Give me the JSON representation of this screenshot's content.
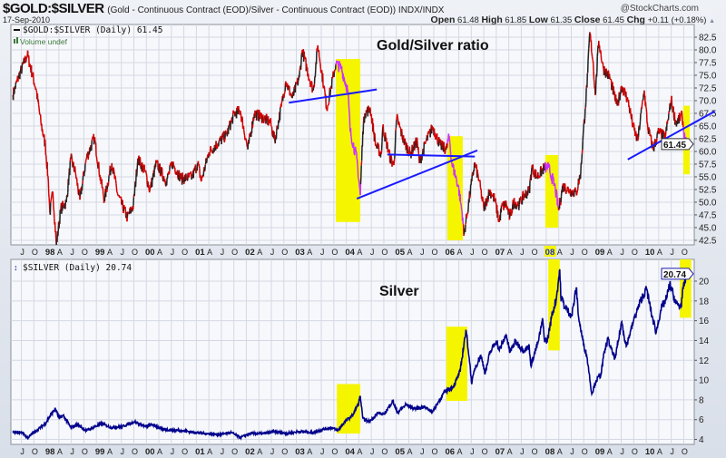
{
  "header": {
    "symbol": "$GOLD:$SILVER",
    "description": "(Gold - Continuous Contract (EOD)/Silver - Continuous Contract (EOD)) INDX/INDX",
    "brand": "@StockCharts.com",
    "date": "17-Sep-2010",
    "open_label": "Open",
    "open": "61.48",
    "high_label": "High",
    "high": "61.85",
    "low_label": "Low",
    "low": "61.35",
    "close_label": "Close",
    "close": "61.45",
    "chg_label": "Chg",
    "chg": "+0.11 (+0.18%)",
    "chg_arrow": "▲"
  },
  "colors": {
    "ratio_line": "#d40000",
    "ratio_up": "#222222",
    "highlight_line": "#cc33ff",
    "highlight_box": "#f5f500",
    "trendline": "#1a1aff",
    "silver_line": "#00008b",
    "grid": "#d4d8e2",
    "plot_bg": "#f7f8fc"
  },
  "chart_data": [
    {
      "type": "line",
      "title": "Gold/Silver ratio",
      "legend": "$GOLD:$SILVER (Daily) 61.45",
      "volume_note": "Volume undef",
      "last_value": "61.45",
      "x_unit": "decimal year",
      "xlim": [
        1997.29,
        2010.96
      ],
      "ylim": [
        41.6,
        85
      ],
      "y_ticks": [
        "42.5",
        "45.0",
        "47.5",
        "50.0",
        "52.5",
        "55.0",
        "57.5",
        "60.0",
        "62.5",
        "65.0",
        "67.5",
        "70.0",
        "72.5",
        "75.0",
        "77.5",
        "80.0",
        "82.5"
      ],
      "grid": true,
      "x": [
        1997.33,
        1997.44,
        1997.62,
        1997.8,
        1997.89,
        1997.98,
        1998.04,
        1998.07,
        1998.13,
        1998.2,
        1998.29,
        1998.4,
        1998.49,
        1998.58,
        1998.67,
        1998.8,
        1998.96,
        1999.07,
        1999.16,
        1999.31,
        1999.43,
        1999.62,
        1999.74,
        1999.83,
        1999.98,
        2000.07,
        2000.2,
        2000.4,
        2000.52,
        2000.7,
        2000.92,
        2001.03,
        2001.1,
        2001.25,
        2001.43,
        2001.61,
        2001.76,
        2001.88,
        2002.03,
        2002.16,
        2002.34,
        2002.48,
        2002.57,
        2002.7,
        2002.79,
        2002.92,
        2003.06,
        2003.12,
        2003.24,
        2003.34,
        2003.43,
        2003.55,
        2003.61,
        2003.7,
        2003.79,
        2003.9,
        2004.03,
        2004.08,
        2004.21,
        2004.28,
        2004.33,
        2004.37,
        2004.48,
        2004.59,
        2004.7,
        2004.73,
        2004.88,
        2004.95,
        2005.01,
        2005.15,
        2005.28,
        2005.42,
        2005.46,
        2005.6,
        2005.73,
        2005.88,
        2006.0,
        2006.06,
        2006.11,
        2006.24,
        2006.33,
        2006.35,
        2006.42,
        2006.51,
        2006.57,
        2006.66,
        2006.75,
        2006.87,
        2006.97,
        2007.06,
        2007.11,
        2007.2,
        2007.27,
        2007.35,
        2007.46,
        2007.56,
        2007.66,
        2007.71,
        2007.82,
        2007.96,
        2008.05,
        2008.11,
        2008.18,
        2008.25,
        2008.33,
        2008.47,
        2008.6,
        2008.69,
        2008.73,
        2008.78,
        2008.83,
        2008.87,
        2008.94,
        2008.98,
        2009.05,
        2009.14,
        2009.27,
        2009.36,
        2009.42,
        2009.51,
        2009.63,
        2009.74,
        2009.83,
        2009.91,
        2009.96,
        2010.03,
        2010.14,
        2010.25,
        2010.38,
        2010.5,
        2010.59,
        2010.72,
        2010.76,
        2010.8
      ],
      "y": [
        71.1,
        74.6,
        79.1,
        72.0,
        65.7,
        61.2,
        54.0,
        47.9,
        52.0,
        41.6,
        48.7,
        50.0,
        58.6,
        55.9,
        50.5,
        58.6,
        62.7,
        55.4,
        50.5,
        57.7,
        51.4,
        47.0,
        49.3,
        58.6,
        55.9,
        52.3,
        57.7,
        54.1,
        57.7,
        54.6,
        55.0,
        57.7,
        54.1,
        59.8,
        61.6,
        63.4,
        67.5,
        68.0,
        60.4,
        67.5,
        66.6,
        65.7,
        62.1,
        68.8,
        73.8,
        70.5,
        74.6,
        80.0,
        75.2,
        72.0,
        80.9,
        72.9,
        68.4,
        72.9,
        77.3,
        76.4,
        72.0,
        63.9,
        58.6,
        51.4,
        63.9,
        67.5,
        68.4,
        61.2,
        59.5,
        64.8,
        58.6,
        57.3,
        66.6,
        62.1,
        59.5,
        62.1,
        57.7,
        62.1,
        64.8,
        61.2,
        60.4,
        63.0,
        57.7,
        53.2,
        47.0,
        43.4,
        47.9,
        54.1,
        57.7,
        54.1,
        48.7,
        52.3,
        50.5,
        46.1,
        49.1,
        49.6,
        47.0,
        50.0,
        49.6,
        51.4,
        52.3,
        56.8,
        55.0,
        56.8,
        56.8,
        55.0,
        52.7,
        48.4,
        53.2,
        52.3,
        51.8,
        55.9,
        62.1,
        68.4,
        75.5,
        83.5,
        77.3,
        71.1,
        81.8,
        76.4,
        74.6,
        71.1,
        69.0,
        72.9,
        70.2,
        64.8,
        62.1,
        68.4,
        72.0,
        64.8,
        60.4,
        63.9,
        62.7,
        70.2,
        65.7,
        67.0,
        63.0,
        61.45
      ],
      "highlights": [
        {
          "x": [
            2003.79,
            2004.28
          ],
          "y": [
            46.1,
            78.2
          ]
        },
        {
          "x": [
            2006.02,
            2006.33
          ],
          "y": [
            42.5,
            63.0
          ]
        },
        {
          "x": [
            2007.98,
            2008.24
          ],
          "y": [
            45.0,
            59.3
          ]
        },
        {
          "x": [
            2010.74,
            2010.87
          ],
          "y": [
            55.5,
            69.0
          ]
        }
      ],
      "trendlines": [
        {
          "x": [
            2002.85,
            2004.61
          ],
          "y": [
            69.6,
            72.2
          ]
        },
        {
          "x": [
            2004.21,
            2006.62
          ],
          "y": [
            50.7,
            60.2
          ]
        },
        {
          "x": [
            2004.82,
            2006.57
          ],
          "y": [
            59.4,
            59.0
          ]
        },
        {
          "x": [
            2009.63,
            2011.37
          ],
          "y": [
            58.4,
            67.9
          ]
        }
      ]
    },
    {
      "type": "line",
      "title": "Silver",
      "legend": "$SILVER (Daily) 20.74",
      "last_value": "20.74",
      "x_unit": "decimal year",
      "xlim": [
        1997.29,
        2010.96
      ],
      "ylim": [
        3.5,
        22.2
      ],
      "y_ticks": [
        "4",
        "6",
        "8",
        "10",
        "12",
        "14",
        "16",
        "18",
        "20"
      ],
      "grid": true,
      "x": [
        1997.33,
        1997.53,
        1997.62,
        1997.8,
        1997.98,
        1998.09,
        1998.18,
        1998.25,
        1998.34,
        1998.49,
        1998.62,
        1998.8,
        1998.98,
        1999.11,
        1999.29,
        1999.52,
        1999.76,
        1999.98,
        2000.12,
        2000.34,
        2000.7,
        2000.98,
        2001.16,
        2001.43,
        2001.7,
        2001.88,
        2002.07,
        2002.34,
        2002.57,
        2002.79,
        2003.06,
        2003.34,
        2003.52,
        2003.7,
        2003.83,
        2003.97,
        2004.12,
        2004.24,
        2004.28,
        2004.33,
        2004.46,
        2004.64,
        2004.75,
        2004.93,
        2005.02,
        2005.19,
        2005.37,
        2005.55,
        2005.73,
        2005.84,
        2005.97,
        2006.15,
        2006.28,
        2006.37,
        2006.4,
        2006.46,
        2006.51,
        2006.57,
        2006.69,
        2006.78,
        2006.87,
        2007.0,
        2007.06,
        2007.2,
        2007.27,
        2007.38,
        2007.55,
        2007.66,
        2007.69,
        2007.84,
        2007.93,
        2007.96,
        2008.02,
        2008.11,
        2008.2,
        2008.27,
        2008.29,
        2008.38,
        2008.51,
        2008.6,
        2008.65,
        2008.73,
        2008.82,
        2008.91,
        2009.0,
        2009.09,
        2009.14,
        2009.23,
        2009.32,
        2009.38,
        2009.51,
        2009.6,
        2009.69,
        2009.78,
        2009.91,
        2010.01,
        2010.1,
        2010.2,
        2010.29,
        2010.41,
        2010.47,
        2010.6,
        2010.69,
        2010.74,
        2010.81
      ],
      "y": [
        4.7,
        4.7,
        4.15,
        4.9,
        5.6,
        6.5,
        7.1,
        6.2,
        6.4,
        5.2,
        5.5,
        4.9,
        5.3,
        5.6,
        5.2,
        5.3,
        5.8,
        5.3,
        5.5,
        5.0,
        4.9,
        4.7,
        4.6,
        4.5,
        4.7,
        4.2,
        4.6,
        4.6,
        4.8,
        4.6,
        4.8,
        4.7,
        5.0,
        5.2,
        4.9,
        5.8,
        6.4,
        7.6,
        8.4,
        6.1,
        5.8,
        6.7,
        6.5,
        7.9,
        6.7,
        7.5,
        7.1,
        7.3,
        6.8,
        7.8,
        8.8,
        9.4,
        10.9,
        14.3,
        14.9,
        12.2,
        9.6,
        11.2,
        12.5,
        10.7,
        12.7,
        14.0,
        13.0,
        14.6,
        12.8,
        13.9,
        13.0,
        13.4,
        11.5,
        13.9,
        16.1,
        14.2,
        13.9,
        16.5,
        18.2,
        21.2,
        18.5,
        17.3,
        16.5,
        19.3,
        16.2,
        14.0,
        12.2,
        8.6,
        10.0,
        10.5,
        12.2,
        14.2,
        12.8,
        12.2,
        15.9,
        13.4,
        15.0,
        16.5,
        18.3,
        19.2,
        16.8,
        14.8,
        17.1,
        18.3,
        19.7,
        17.7,
        17.4,
        19.2,
        20.74
      ],
      "highlights": [
        {
          "x": [
            2003.81,
            2004.28
          ],
          "y": [
            4.6,
            9.6
          ]
        },
        {
          "x": [
            2006.0,
            2006.42
          ],
          "y": [
            7.9,
            15.4
          ]
        },
        {
          "x": [
            2008.04,
            2008.27
          ],
          "y": [
            13.0,
            22.2
          ]
        },
        {
          "x": [
            2010.67,
            2010.9
          ],
          "y": [
            16.3,
            22.2
          ]
        }
      ]
    }
  ],
  "x_axis": {
    "first_tick": 1997.25,
    "step": 0.25,
    "labels": [
      "A",
      "J",
      "O",
      "98",
      "A",
      "J",
      "O",
      "99",
      "A",
      "J",
      "O",
      "00",
      "A",
      "J",
      "O",
      "01",
      "A",
      "J",
      "O",
      "02",
      "A",
      "J",
      "O",
      "03",
      "A",
      "J",
      "O",
      "04",
      "A",
      "J",
      "O",
      "05",
      "A",
      "J",
      "O",
      "06",
      "A",
      "J",
      "O",
      "07",
      "A",
      "J",
      "O",
      "08",
      "A",
      "J",
      "O",
      "09",
      "A",
      "J",
      "O",
      "10",
      "A",
      "J",
      "O"
    ],
    "highlight_label": "08"
  }
}
